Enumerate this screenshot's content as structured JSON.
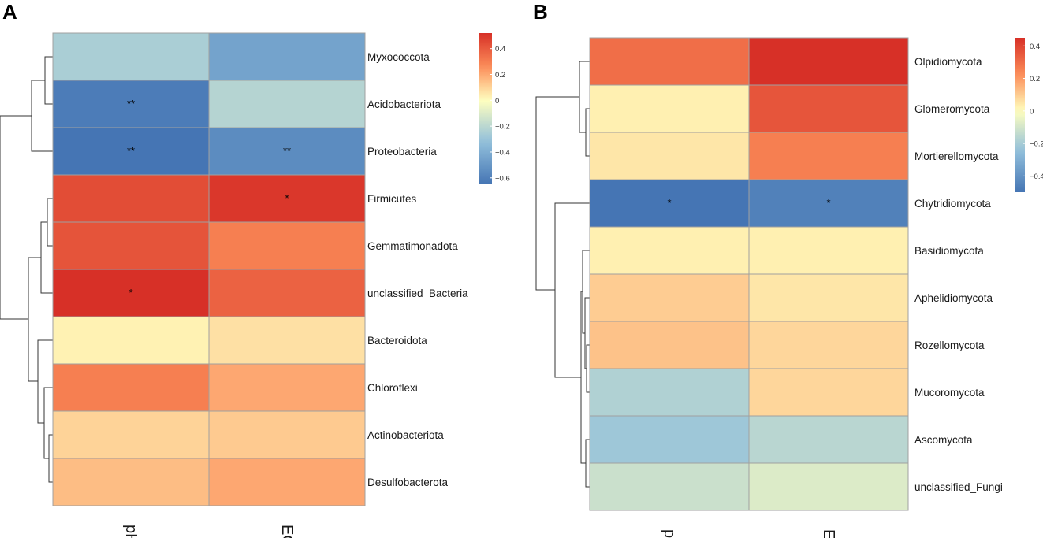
{
  "chart_data": [
    {
      "type": "heatmap",
      "panel": "A",
      "columns": [
        "pH",
        "EC"
      ],
      "rows": [
        "Myxococcota",
        "Acidobacteriota",
        "Proteobacteria",
        "Firmicutes",
        "Gemmatimonadota",
        "unclassified_Bacteria",
        "Bacteroidota",
        "Chloroflexi",
        "Actinobacteriota",
        "Desulfobacterota"
      ],
      "values": [
        [
          -0.25,
          -0.45
        ],
        [
          -0.62,
          -0.22
        ],
        [
          -0.65,
          -0.55
        ],
        [
          0.44,
          0.5
        ],
        [
          0.42,
          0.3
        ],
        [
          0.52,
          0.38
        ],
        [
          0.03,
          0.07
        ],
        [
          0.3,
          0.2
        ],
        [
          0.1,
          0.12
        ],
        [
          0.15,
          0.2
        ]
      ],
      "significance": [
        [
          "",
          ""
        ],
        [
          "**",
          ""
        ],
        [
          "**",
          "**"
        ],
        [
          "",
          "*"
        ],
        [
          "",
          ""
        ],
        [
          "*",
          ""
        ],
        [
          "",
          ""
        ],
        [
          "",
          ""
        ],
        [
          "",
          ""
        ],
        [
          "",
          ""
        ]
      ],
      "legend": {
        "ticks": [
          0.4,
          0.2,
          0,
          -0.2,
          -0.4,
          -0.6
        ],
        "tick_labels": [
          "0.4",
          "0.2",
          "0",
          "−0.2",
          "−0.4",
          "−0.6"
        ],
        "range": [
          -0.65,
          0.52
        ]
      }
    },
    {
      "type": "heatmap",
      "panel": "B",
      "columns": [
        "pH",
        "EC"
      ],
      "rows": [
        "Olpidiomycota",
        "Glomeromycota",
        "Mortierellomycota",
        "Chytridiomycota",
        "Basidiomycota",
        "Aphelidiomycota",
        "Rozellomycota",
        "Mucoromycota",
        "Ascomycota",
        "unclassified_Fungi"
      ],
      "values": [
        [
          0.3,
          0.45
        ],
        [
          0.03,
          0.36
        ],
        [
          0.05,
          0.26
        ],
        [
          -0.5,
          -0.46
        ],
        [
          0.03,
          0.03
        ],
        [
          0.1,
          0.05
        ],
        [
          0.12,
          0.08
        ],
        [
          -0.18,
          0.08
        ],
        [
          -0.22,
          -0.16
        ],
        [
          -0.12,
          -0.08
        ]
      ],
      "significance": [
        [
          "",
          ""
        ],
        [
          "",
          ""
        ],
        [
          "",
          ""
        ],
        [
          "*",
          "*"
        ],
        [
          "",
          ""
        ],
        [
          "",
          ""
        ],
        [
          "",
          ""
        ],
        [
          "",
          ""
        ],
        [
          "",
          ""
        ],
        [
          "",
          ""
        ]
      ],
      "legend": {
        "ticks": [
          0.4,
          0.2,
          0,
          -0.2,
          -0.4
        ],
        "tick_labels": [
          "0.4",
          "0.2",
          "0",
          "−0.2",
          "−0.4"
        ],
        "range": [
          -0.5,
          0.45
        ]
      }
    }
  ]
}
